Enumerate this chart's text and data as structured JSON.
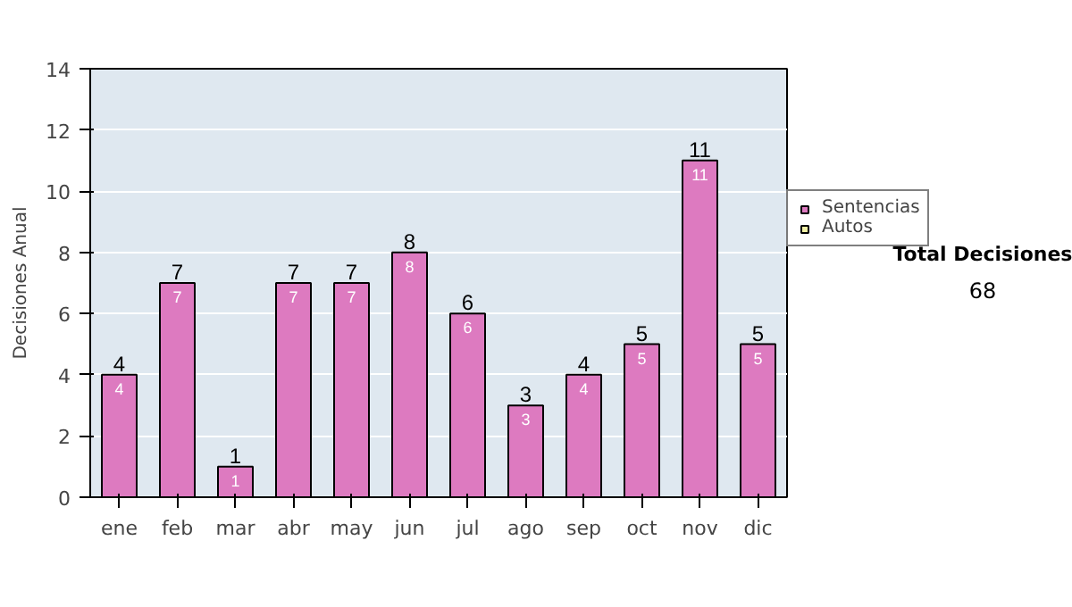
{
  "chart_data": {
    "type": "bar",
    "stacked": true,
    "ylabel": "Decisiones Anual",
    "categories": [
      "ene",
      "feb",
      "mar",
      "abr",
      "may",
      "jun",
      "jul",
      "ago",
      "sep",
      "oct",
      "nov",
      "dic"
    ],
    "series": [
      {
        "name": "Sentencias",
        "color": "#dd7ac0",
        "values": [
          4,
          7,
          1,
          7,
          7,
          8,
          6,
          3,
          4,
          5,
          11,
          5
        ]
      },
      {
        "name": "Autos",
        "color": "#f2f2a6",
        "values": [
          null,
          null,
          null,
          null,
          null,
          null,
          null,
          null,
          null,
          null,
          null,
          null
        ]
      }
    ],
    "totals": [
      "4",
      "7",
      "1",
      "7",
      "7",
      "8",
      "6",
      "3",
      "4",
      "5",
      "11",
      "5"
    ],
    "data_labels": true,
    "ylim": [
      0,
      14
    ],
    "yticks": [
      0,
      2,
      4,
      6,
      8,
      10,
      12,
      14
    ],
    "grid": "y",
    "legend": "right",
    "annotations": [
      "Total Decisiones",
      "68"
    ]
  }
}
